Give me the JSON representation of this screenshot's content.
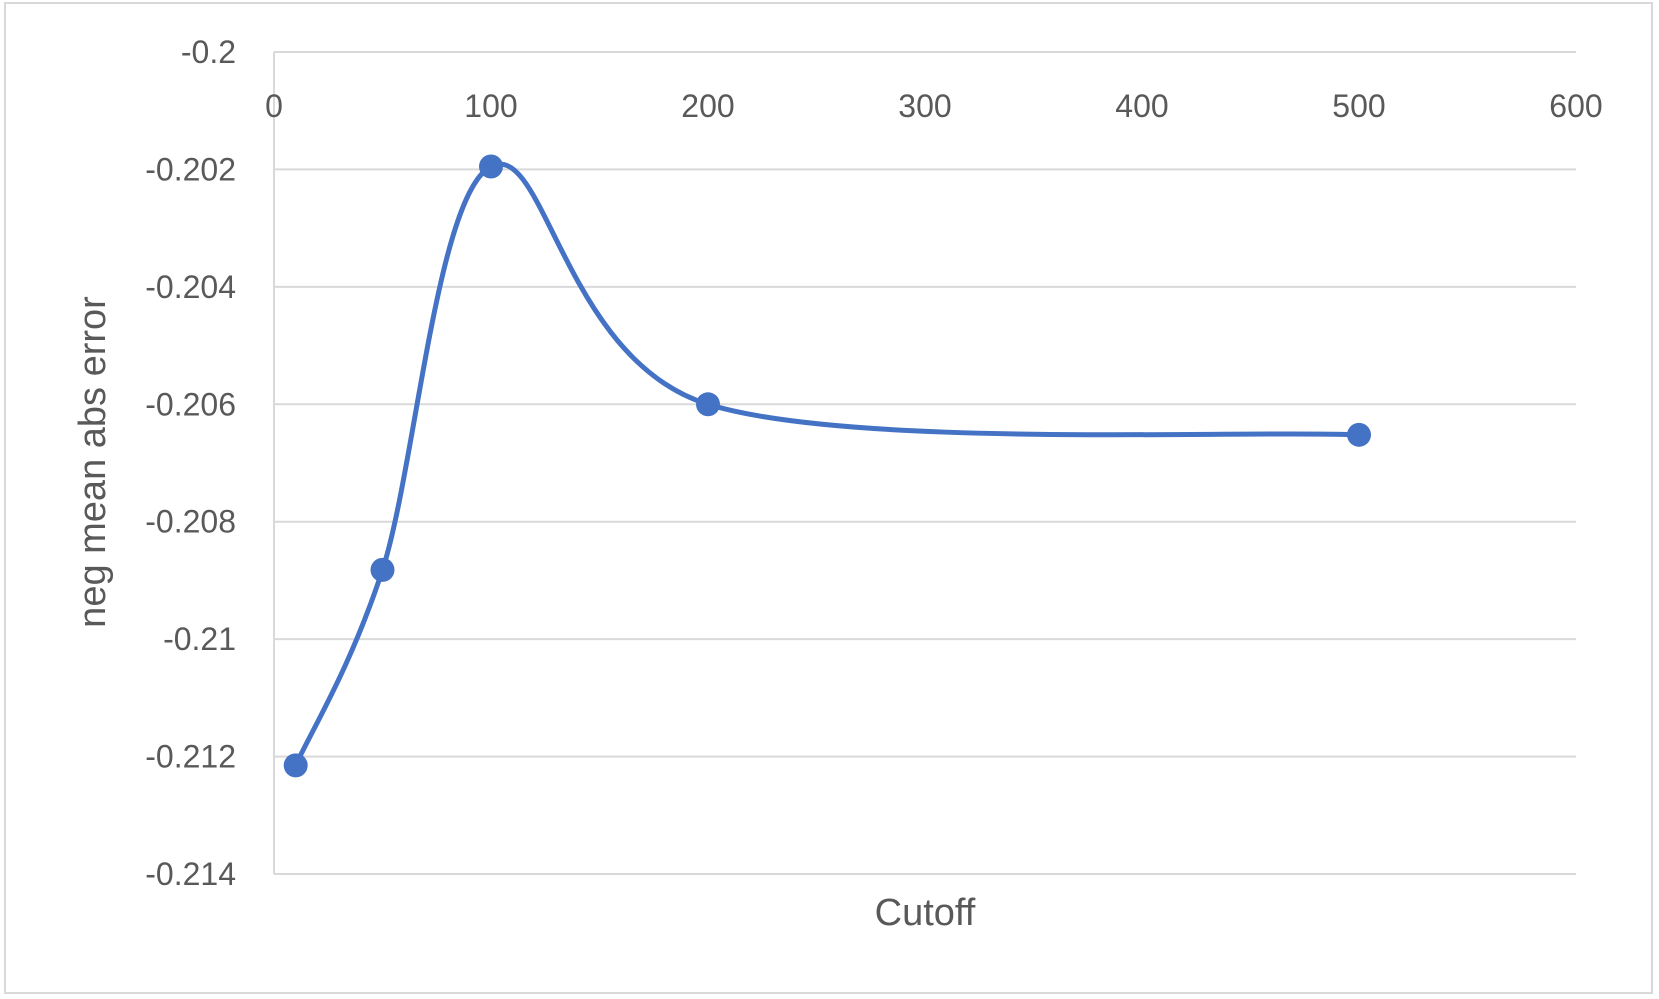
{
  "chart_data": {
    "type": "scatter",
    "title": "",
    "xlabel": "Cutoff",
    "ylabel": "neg mean abs error",
    "xlim": [
      0,
      600
    ],
    "ylim": [
      -0.214,
      -0.2
    ],
    "x_ticks": [
      "0",
      "100",
      "200",
      "300",
      "400",
      "500",
      "600"
    ],
    "y_ticks": [
      "-0.2",
      "-0.202",
      "-0.204",
      "-0.206",
      "-0.208",
      "-0.21",
      "-0.212",
      "-0.214"
    ],
    "x_axis_position": "top",
    "grid": true,
    "legend": "none",
    "smooth_line": true,
    "series": [
      {
        "color": "#4472C4",
        "x": [
          10,
          50,
          100,
          200,
          500
        ],
        "y": [
          -0.21215,
          -0.20882,
          -0.20195,
          -0.206,
          -0.20652
        ]
      }
    ]
  }
}
